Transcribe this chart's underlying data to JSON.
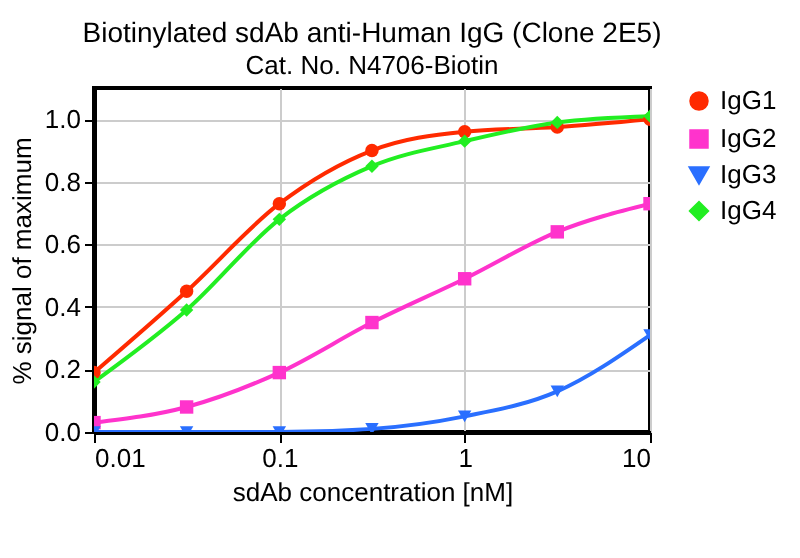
{
  "chart_data": {
    "type": "line",
    "title": "Biotinylated sdAb anti-Human IgG (Clone 2E5)",
    "subtitle": "Cat. No. N4706-Biotin",
    "xlabel": "sdAb concentration  [nM]",
    "ylabel": "% signal of maximum",
    "x": [
      0.01,
      0.0316,
      0.1,
      0.316,
      1,
      3.16,
      10
    ],
    "series": [
      {
        "name": "IgG1",
        "color": "#ff2a00",
        "marker": "circle",
        "values": [
          0.19,
          0.45,
          0.73,
          0.9,
          0.96,
          0.975,
          1.0
        ]
      },
      {
        "name": "IgG2",
        "color": "#ff33cc",
        "marker": "square",
        "values": [
          0.03,
          0.08,
          0.19,
          0.35,
          0.49,
          0.64,
          0.73
        ]
      },
      {
        "name": "IgG3",
        "color": "#2a6fff",
        "marker": "triangle-down",
        "values": [
          0.0,
          0.0,
          0.0,
          0.01,
          0.05,
          0.13,
          0.31
        ]
      },
      {
        "name": "IgG4",
        "color": "#22ee22",
        "marker": "diamond",
        "values": [
          0.16,
          0.39,
          0.68,
          0.85,
          0.93,
          0.99,
          1.01
        ]
      }
    ],
    "log": "x",
    "xlim": [
      0.01,
      10
    ],
    "xticks": [
      0.01,
      0.1,
      1,
      10
    ],
    "ylim": [
      0,
      1.1
    ],
    "yticks": [
      {
        "value": 0,
        "label": "0.0"
      },
      {
        "value": 0.2,
        "label": "0.2"
      },
      {
        "value": 0.4,
        "label": "0.4"
      },
      {
        "value": 0.6,
        "label": "0.6"
      },
      {
        "value": 0.8,
        "label": "0.8"
      },
      {
        "value": 1,
        "label": "1.0"
      }
    ],
    "grid": true,
    "legend": "right",
    "line_style": "solid"
  }
}
